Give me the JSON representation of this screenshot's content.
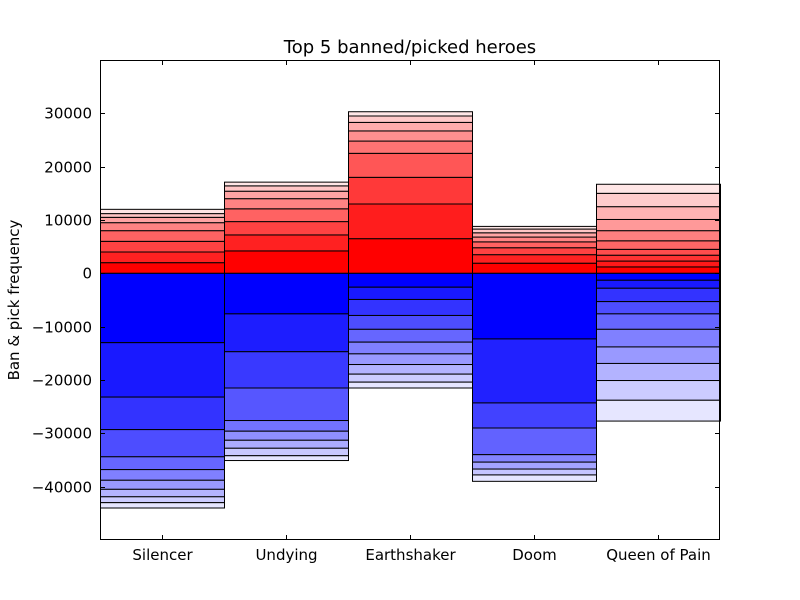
{
  "chart_data": {
    "type": "bar",
    "stacked": true,
    "title": "Top 5 banned/picked heroes",
    "xlabel": "",
    "ylabel": "Ban & pick frequency",
    "ylim": [
      -50000,
      40000
    ],
    "yticks": [
      -40000,
      -30000,
      -20000,
      -10000,
      0,
      10000,
      20000,
      30000
    ],
    "ytick_labels": [
      "−40000",
      "−30000",
      "−20000",
      "−10000",
      "0",
      "10000",
      "20000",
      "30000"
    ],
    "categories": [
      "Silencer",
      "Undying",
      "Earthshaker",
      "Doom",
      "Queen of Pain"
    ],
    "grid": false,
    "legend": "none",
    "positive_color": "#ff0000",
    "negative_color": "#0000ff",
    "positive_stacks": [
      [
        0,
        2000,
        4000,
        6000,
        8000,
        9500,
        10500,
        11200,
        12000
      ],
      [
        0,
        4200,
        7200,
        9700,
        12100,
        14000,
        15400,
        16400,
        17100
      ],
      [
        0,
        6500,
        13000,
        18000,
        22500,
        24800,
        26700,
        28300,
        29500,
        30300
      ],
      [
        0,
        1900,
        3500,
        4800,
        5900,
        6800,
        7600,
        8300,
        8800
      ],
      [
        0,
        1200,
        2300,
        3400,
        4500,
        6100,
        8000,
        10100,
        12500,
        15000,
        16700
      ]
    ],
    "negative_stacks": [
      [
        0,
        -13000,
        -23200,
        -29300,
        -34400,
        -36800,
        -38800,
        -40500,
        -41900,
        -43000,
        -44000
      ],
      [
        0,
        -7600,
        -14700,
        -21500,
        -27600,
        -29600,
        -31300,
        -32800,
        -34200,
        -35100
      ],
      [
        0,
        -2600,
        -4900,
        -7900,
        -10500,
        -12900,
        -15100,
        -17100,
        -18900,
        -20400,
        -21500
      ],
      [
        0,
        -12300,
        -24300,
        -29000,
        -34000,
        -35400,
        -36700,
        -37800,
        -39000
      ],
      [
        0,
        -1300,
        -2800,
        -5300,
        -7600,
        -10500,
        -13800,
        -16900,
        -20100,
        -23800,
        -27700
      ]
    ]
  }
}
